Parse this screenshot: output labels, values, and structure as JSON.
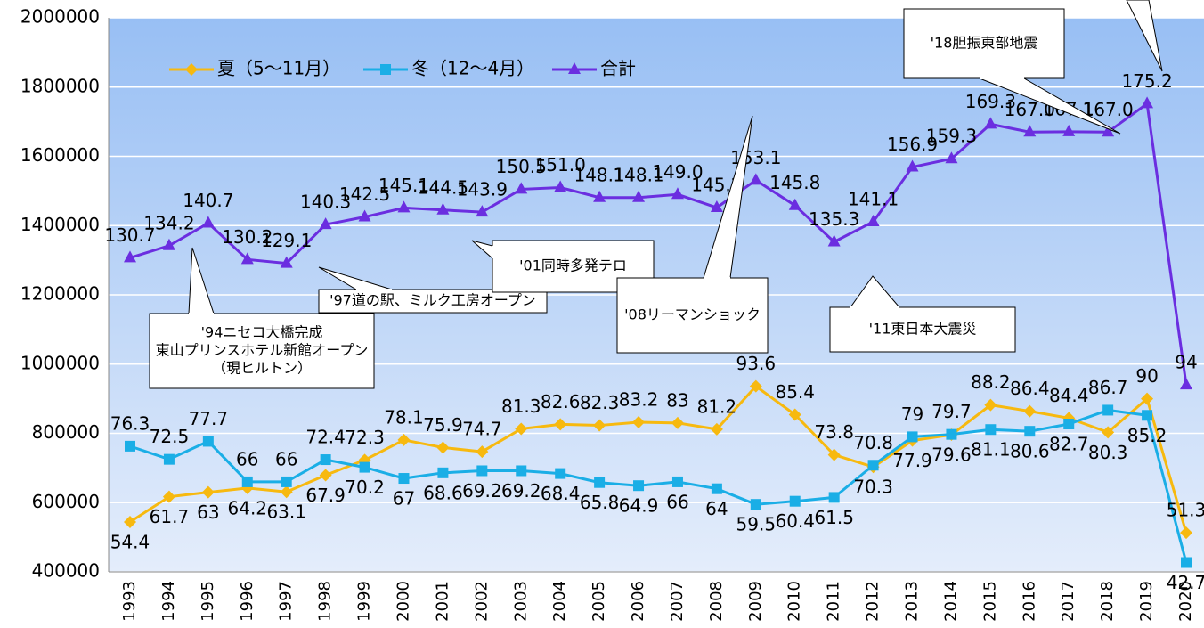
{
  "chart_data": {
    "type": "line",
    "categories": [
      "1993",
      "1994",
      "1995",
      "1996",
      "1997",
      "1998",
      "1999",
      "2000",
      "2001",
      "2002",
      "2003",
      "2004",
      "2005",
      "2006",
      "2007",
      "2008",
      "2009",
      "2010",
      "2011",
      "2012",
      "2013",
      "2014",
      "2015",
      "2016",
      "2017",
      "2018",
      "2019",
      "2020"
    ],
    "series": [
      {
        "name": "夏（5～11月）",
        "color": "#f7b90f",
        "marker": "diamond",
        "values": [
          544000,
          617000,
          630000,
          642000,
          631000,
          679000,
          723000,
          781000,
          759000,
          747000,
          813000,
          826000,
          823000,
          832000,
          830000,
          812000,
          936000,
          854000,
          738000,
          703000,
          779000,
          796000,
          882000,
          864000,
          844000,
          803000,
          900000,
          513000
        ],
        "value_labels": [
          "54.4",
          "61.7",
          "63",
          "64.2",
          "63.1",
          "67.9",
          "72.3",
          "78.1",
          "75.9",
          "74.7",
          "81.3",
          "82.6",
          "82.3",
          "83.2",
          "83",
          "81.2",
          "93.6",
          "85.4",
          "73.8",
          "70.3",
          "77.9",
          "79.6",
          "88.2",
          "86.4",
          "84.4",
          "80.3",
          "90",
          "51.3"
        ]
      },
      {
        "name": "冬（12～4月）",
        "color": "#1aaee6",
        "marker": "square",
        "values": [
          763000,
          725000,
          777000,
          660000,
          660000,
          724000,
          702000,
          670000,
          686000,
          692000,
          692000,
          684000,
          658000,
          649000,
          660000,
          640000,
          595000,
          604000,
          615000,
          708000,
          790000,
          797000,
          811000,
          806000,
          827000,
          867000,
          852000,
          427000
        ],
        "value_labels": [
          "76.3",
          "72.5",
          "77.7",
          "66",
          "66",
          "72.4",
          "70.2",
          "67",
          "68.6",
          "69.2",
          "69.2",
          "68.4",
          "65.8",
          "64.9",
          "66",
          "64",
          "59.5",
          "60.4",
          "61.5",
          "70.8",
          "79",
          "79.7",
          "81.1",
          "80.6",
          "82.7",
          "86.7",
          "85.2",
          "42.7"
        ]
      },
      {
        "name": "合計",
        "color": "#6b2ee0",
        "marker": "triangle",
        "values": [
          1307000,
          1342000,
          1407000,
          1302000,
          1291000,
          1403000,
          1425000,
          1451000,
          1445000,
          1439000,
          1505000,
          1510000,
          1481000,
          1481000,
          1490000,
          1452000,
          1531000,
          1458000,
          1353000,
          1411000,
          1569000,
          1593000,
          1693000,
          1670000,
          1671000,
          1670000,
          1752000,
          940000
        ],
        "value_labels": [
          "130.7",
          "134.2",
          "140.7",
          "130.2",
          "129.1",
          "140.3",
          "142.5",
          "145.1",
          "144.5",
          "143.9",
          "150.5",
          "151.0",
          "148.1",
          "148.1",
          "149.0",
          "145.2",
          "153.1",
          "145.8",
          "135.3",
          "141.1",
          "156.9",
          "159.3",
          "169.3",
          "167.0",
          "167.1",
          "167.0",
          "175.2",
          "94"
        ]
      }
    ],
    "ylim": [
      400000,
      2000000
    ],
    "yticks": [
      400000,
      600000,
      800000,
      1000000,
      1200000,
      1400000,
      1600000,
      1800000,
      2000000
    ],
    "grid": true,
    "legend": "top-left",
    "annotations": [
      {
        "text": [
          "'94ニセコ大橋完成",
          "東山プリンスホテル新館オープン",
          "（現ヒルトン）"
        ]
      },
      {
        "text": [
          "'97道の駅、ミルク工房オープン"
        ]
      },
      {
        "text": [
          "'01同時多発テロ"
        ]
      },
      {
        "text": [
          "'08リーマンショック"
        ]
      },
      {
        "text": [
          "'11東日本大震災"
        ]
      },
      {
        "text": [
          "'18胆振東部地震"
        ]
      }
    ]
  }
}
